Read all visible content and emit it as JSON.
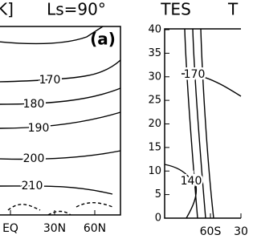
{
  "chart_data": [
    {
      "type": "contour",
      "title": "K]",
      "subtitle": "Ls=90°",
      "panel_label": "(a)",
      "categories": [
        "EQ",
        "30N",
        "60N"
      ],
      "contour_levels": [
        170,
        180,
        190,
        200,
        210
      ],
      "color": "#000000"
    },
    {
      "type": "contour",
      "title": "TES",
      "subtitle": "T",
      "categories": [
        "60S",
        "30"
      ],
      "contour_levels": [
        170,
        140
      ],
      "color": "#000000",
      "ylim": [
        0,
        40
      ],
      "yticks": [
        0,
        5,
        10,
        15,
        20,
        25,
        30,
        35,
        40
      ]
    }
  ]
}
